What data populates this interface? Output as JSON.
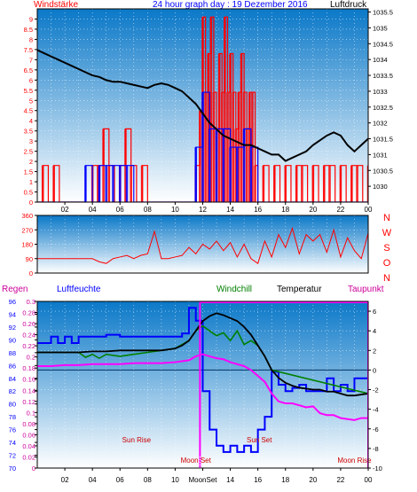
{
  "header": {
    "left_label": "Windstärke",
    "title": "24 hour graph day : 19 Dezember 2016",
    "right_label": "Luftdruck"
  },
  "colors": {
    "wind": "#ff0000",
    "gust": "#0000ff",
    "pressure": "#000000",
    "direction": "#ff0000",
    "temperature": "#000000",
    "windchill": "#008000",
    "dewpoint": "#ff00ff",
    "humidity": "#0000ff",
    "rain": "#ff00ff",
    "axis_left": "#ff0000",
    "axis_blue": "#0000ff",
    "axis_magenta": "#cc0099",
    "sky_top": "#0a78c8",
    "sky_bottom": "#ffffff"
  },
  "chart_data": [
    {
      "type": "line",
      "title": "",
      "y_left": {
        "label": "Windstärke",
        "min": 0,
        "max": 9.5,
        "ticks": [
          "0",
          "0.5",
          "1",
          "1.5",
          "2",
          "2.5",
          "3",
          "3.5",
          "4",
          "4.5",
          "5",
          "5.5",
          "6",
          "6.5",
          "7",
          "7.5",
          "8",
          "8.5",
          "9"
        ]
      },
      "y_right": {
        "label": "Luftdruck",
        "min": 1029.5,
        "max": 1035.6,
        "ticks": [
          "1030",
          "1030.5",
          "1031",
          "1031.5",
          "1032",
          "1032.5",
          "1033",
          "1033.5",
          "1034",
          "1034.5",
          "1035",
          "1035.5"
        ]
      },
      "x_ticks": [
        "02",
        "04",
        "06",
        "08",
        "10",
        "12",
        "14",
        "16",
        "18",
        "20",
        "22",
        "00"
      ],
      "x_range": [
        0,
        24
      ],
      "series": [
        {
          "name": "Luftdruck",
          "axis": "right",
          "x": [
            0,
            0.5,
            1,
            1.5,
            2,
            2.5,
            3,
            3.5,
            4,
            4.5,
            5,
            5.5,
            6,
            6.5,
            7,
            7.5,
            8,
            8.5,
            9,
            9.5,
            10,
            10.5,
            11,
            11.5,
            12,
            12.5,
            13,
            13.5,
            14,
            14.5,
            15,
            15.5,
            16,
            16.5,
            17,
            17.5,
            18,
            18.5,
            19,
            19.5,
            20,
            20.5,
            21,
            21.5,
            22,
            22.5,
            23,
            23.5,
            24
          ],
          "y": [
            1034.3,
            1034.2,
            1034.1,
            1034.0,
            1033.9,
            1033.8,
            1033.7,
            1033.6,
            1033.5,
            1033.45,
            1033.35,
            1033.3,
            1033.3,
            1033.25,
            1033.2,
            1033.15,
            1033.1,
            1033.2,
            1033.25,
            1033.2,
            1033.1,
            1033.0,
            1032.8,
            1032.6,
            1032.3,
            1032.0,
            1031.8,
            1031.6,
            1031.5,
            1031.4,
            1031.3,
            1031.3,
            1031.2,
            1031.1,
            1031.0,
            1031.0,
            1030.8,
            1030.9,
            1031.0,
            1031.1,
            1031.3,
            1031.45,
            1031.6,
            1031.7,
            1031.6,
            1031.3,
            1031.1,
            1031.3,
            1031.5
          ]
        },
        {
          "name": "Windstärke",
          "axis": "left",
          "x": [
            0,
            0.4,
            0.8,
            1.2,
            1.6,
            2.0,
            2.5,
            3.0,
            3.5,
            4.0,
            4.4,
            4.8,
            5.2,
            5.6,
            6.0,
            6.4,
            6.8,
            7.2,
            7.6,
            8.0,
            8.5,
            9.0,
            9.5,
            10.0,
            10.5,
            11.0,
            11.5,
            11.8,
            12.0,
            12.2,
            12.4,
            12.6,
            12.8,
            13.0,
            13.2,
            13.4,
            13.6,
            13.8,
            14.0,
            14.2,
            14.4,
            14.6,
            14.8,
            15.0,
            15.2,
            15.4,
            15.6,
            15.8,
            16.0,
            16.4,
            16.8,
            17.2,
            17.6,
            18.0,
            18.4,
            18.8,
            19.2,
            19.6,
            20.0,
            20.4,
            20.8,
            21.2,
            21.6,
            22.0,
            22.4,
            22.8,
            23.2,
            23.6,
            24.0
          ],
          "y": [
            0,
            1.8,
            0,
            1.8,
            0,
            0,
            0,
            0,
            0,
            1.8,
            1.8,
            3.6,
            1.8,
            0,
            1.8,
            3.6,
            1.8,
            0,
            1.8,
            0,
            0,
            0,
            0,
            0,
            0,
            0,
            1.8,
            4.5,
            9.1,
            5.4,
            7.3,
            9.1,
            5.4,
            3.6,
            7.3,
            5.4,
            9.1,
            5.4,
            7.3,
            5.4,
            3.6,
            5.4,
            7.3,
            5.4,
            3.6,
            5.4,
            5.4,
            1.8,
            0,
            1.8,
            0,
            1.8,
            0,
            1.8,
            0,
            1.8,
            1.8,
            0,
            1.8,
            0,
            1.8,
            1.8,
            0,
            1.8,
            0,
            1.8,
            1.8,
            0,
            1.8
          ]
        },
        {
          "name": "Böen",
          "axis": "left",
          "x": [
            0,
            1,
            2,
            3,
            3.5,
            4,
            4.5,
            5,
            5.5,
            6,
            6.5,
            7,
            7.5,
            8,
            9,
            10,
            11,
            11.5,
            12,
            12.5,
            13,
            13.5,
            14,
            14.5,
            15,
            15.5,
            16,
            16.5,
            17,
            24
          ],
          "y": [
            0,
            0,
            0,
            0,
            1.8,
            0,
            1.8,
            1.8,
            1.8,
            1.8,
            1.8,
            0,
            0,
            0,
            0,
            0,
            0,
            2.7,
            5.4,
            3.6,
            3.6,
            3.6,
            2.7,
            2.7,
            3.6,
            2.7,
            0,
            0,
            0,
            0
          ]
        }
      ]
    },
    {
      "type": "line",
      "title": "",
      "y_left": {
        "label": "",
        "min": 0,
        "max": 360,
        "ticks": [
          "0",
          "90",
          "180",
          "270",
          "360"
        ]
      },
      "right_labels": [
        "N",
        "W",
        "S",
        "O",
        "N"
      ],
      "x_range": [
        0,
        24
      ],
      "series": [
        {
          "name": "Windrichtung",
          "x": [
            0,
            1,
            2,
            3,
            4,
            4.5,
            5,
            5.5,
            6,
            6.5,
            7,
            7.5,
            8,
            8.5,
            9,
            9.5,
            10,
            10.5,
            11,
            11.5,
            12,
            12.5,
            13,
            13.5,
            14,
            14.5,
            15,
            15.5,
            16,
            16.5,
            17,
            17.5,
            18,
            18.5,
            19,
            19.5,
            20,
            20.5,
            21,
            21.5,
            22,
            22.5,
            23,
            23.5,
            24
          ],
          "y": [
            90,
            90,
            90,
            90,
            90,
            70,
            60,
            90,
            100,
            110,
            90,
            110,
            120,
            260,
            90,
            90,
            100,
            110,
            160,
            120,
            180,
            150,
            200,
            140,
            190,
            100,
            180,
            90,
            60,
            200,
            100,
            240,
            160,
            280,
            120,
            240,
            200,
            240,
            130,
            270,
            100,
            220,
            140,
            90,
            250
          ]
        }
      ]
    },
    {
      "type": "line",
      "title": "",
      "headers": [
        "Regen",
        "Luftfeuchte",
        "Windchill",
        "Temperatur",
        "Taupunkt"
      ],
      "y_rain": {
        "label": "Regen",
        "min": 0,
        "max": 0.3,
        "ticks": [
          "0",
          "0.02",
          "0.04",
          "0.06",
          "0.08",
          "0.1",
          "0.12",
          "0.14",
          "0.16",
          "0.18",
          "0.2",
          "0.22",
          "0.24",
          "0.26",
          "0.28",
          "0.3"
        ]
      },
      "y_humidity": {
        "label": "Luftfeuchte",
        "min": 70,
        "max": 96,
        "ticks": [
          "70",
          "72",
          "74",
          "76",
          "78",
          "80",
          "82",
          "84",
          "86",
          "88",
          "90",
          "92",
          "94",
          "96"
        ]
      },
      "y_temp": {
        "label": "Temperatur",
        "min": -10,
        "max": 7,
        "ticks": [
          "-10",
          "-8",
          "-6",
          "-4",
          "-2",
          "0",
          "2",
          "4",
          "6"
        ]
      },
      "x_ticks": [
        "02",
        "04",
        "06",
        "08",
        "10",
        "12",
        "14",
        "16",
        "18",
        "20",
        "22",
        "00"
      ],
      "x_range": [
        0,
        24
      ],
      "annotations": [
        {
          "label": "Sun Rise",
          "x": 8.2,
          "label_x": 7.2,
          "label_row": "upper"
        },
        {
          "label": "Sun Set",
          "x": 16.3,
          "label_x": 16.1,
          "label_row": "upper"
        },
        {
          "label": "Moon Set",
          "x": 11.8,
          "label_x": 11.5,
          "label_row": "lower"
        },
        {
          "label": "Moon Rise",
          "x": 23.9,
          "label_x": 23.0,
          "label_row": "lower"
        }
      ],
      "x_tick_labels_special": [
        "Moon",
        "Set"
      ],
      "series": [
        {
          "name": "Temperatur",
          "axis": "temp",
          "x": [
            0,
            1,
            2,
            3,
            4,
            5,
            6,
            7,
            8,
            9,
            10,
            10.5,
            11,
            11.5,
            12,
            12.5,
            13,
            13.5,
            14,
            14.5,
            15,
            15.5,
            16,
            16.5,
            17,
            17.5,
            18,
            18.5,
            19,
            19.5,
            20,
            20.5,
            21,
            21.5,
            22,
            22.5,
            23,
            23.5,
            24
          ],
          "y": [
            1.8,
            1.8,
            1.8,
            1.8,
            1.9,
            1.9,
            2.0,
            2.0,
            2.0,
            2.0,
            2.2,
            2.5,
            3.0,
            4.0,
            5.0,
            5.5,
            5.8,
            5.6,
            5.3,
            5.0,
            4.4,
            3.6,
            2.5,
            1.4,
            0,
            -0.8,
            -1.3,
            -1.6,
            -1.8,
            -1.9,
            -2.0,
            -2.0,
            -2.2,
            -2.2,
            -2.4,
            -2.6,
            -2.6,
            -2.5,
            -2.4
          ]
        },
        {
          "name": "Windchill",
          "axis": "temp",
          "x": [
            0,
            3,
            3.5,
            4,
            4.5,
            5,
            6,
            7,
            8,
            9,
            10,
            11,
            11.5,
            12,
            12.5,
            13,
            13.5,
            14,
            14.5,
            15,
            15.5,
            16,
            16.5,
            17,
            24
          ],
          "y": [
            1.8,
            1.8,
            1.3,
            1.6,
            1.2,
            1.6,
            1.4,
            1.6,
            1.8,
            2.0,
            2.2,
            3.0,
            4.0,
            4.5,
            4.0,
            3.5,
            3.8,
            3.0,
            4.0,
            2.6,
            3.0,
            2.5,
            1.4,
            0,
            -2.4
          ]
        },
        {
          "name": "Taupunkt",
          "axis": "temp",
          "x": [
            0,
            1,
            2,
            3,
            4,
            5,
            6,
            7,
            8,
            9,
            10,
            11,
            11.5,
            12,
            12.5,
            13,
            13.5,
            14,
            14.5,
            15,
            15.5,
            16,
            16.5,
            17,
            17.5,
            18,
            18.5,
            19,
            19.5,
            20,
            20.5,
            21,
            21.5,
            22,
            22.5,
            23,
            23.5,
            24
          ],
          "y": [
            0.4,
            0.4,
            0.5,
            0.5,
            0.6,
            0.6,
            0.6,
            0.7,
            0.7,
            0.7,
            0.8,
            1.0,
            1.4,
            1.6,
            1.4,
            1.2,
            1.1,
            0.8,
            0.6,
            0.4,
            0,
            -0.6,
            -1.2,
            -2.4,
            -3.2,
            -3.4,
            -3.4,
            -3.6,
            -3.8,
            -3.7,
            -4.4,
            -4.6,
            -4.6,
            -4.9,
            -5.0,
            -5.1,
            -4.9,
            -4.9
          ]
        },
        {
          "name": "Luftfeuchte",
          "axis": "humidity",
          "x": [
            0,
            1,
            1.5,
            2,
            2.5,
            3,
            4,
            5,
            6,
            7,
            8,
            9,
            10,
            10.5,
            11,
            11.5,
            12,
            12.5,
            13,
            13.5,
            14,
            14.5,
            15,
            15.5,
            16,
            16.5,
            17,
            17.5,
            18,
            18.5,
            19,
            19.5,
            20,
            20.5,
            21,
            21.5,
            22,
            22.5,
            23,
            23.5,
            24
          ],
          "y": [
            89.5,
            90.5,
            89.5,
            90.5,
            89.5,
            90.5,
            90.5,
            90.8,
            90.5,
            90.5,
            90.5,
            90.5,
            90.5,
            91,
            95,
            93,
            82,
            76,
            73.5,
            72.5,
            73.5,
            72.5,
            73.5,
            72.5,
            76,
            78,
            85,
            83,
            82,
            82.5,
            83,
            82,
            82,
            82,
            84,
            82,
            83,
            82,
            84,
            84,
            84
          ]
        },
        {
          "name": "Regen",
          "axis": "rain",
          "x": [
            11.8,
            12.0,
            24.0
          ],
          "y": [
            0.3,
            0.3,
            0.3
          ]
        }
      ]
    }
  ]
}
